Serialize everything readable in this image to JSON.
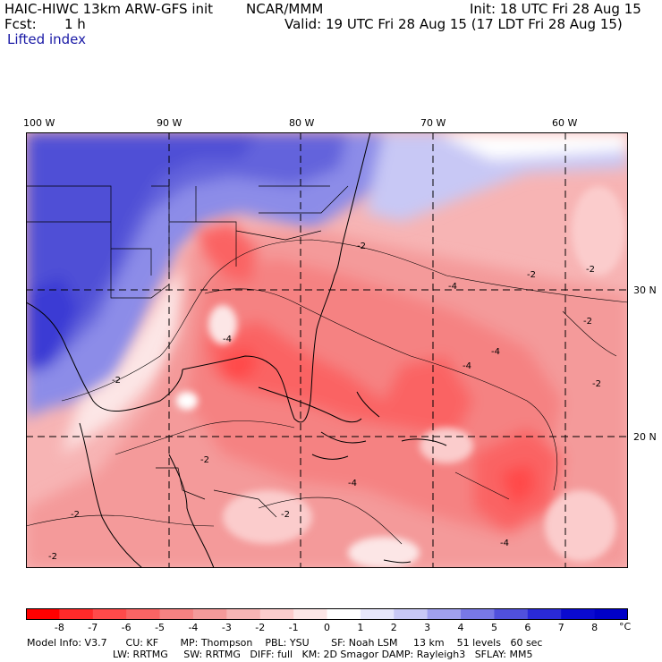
{
  "header": {
    "model": "HAIC-HIWC 13km ARW-GFS init",
    "org": "NCAR/MMM",
    "init": "Init: 18 UTC Fri 28 Aug 15",
    "fcst_label": "Fcst:",
    "fcst_value": "1 h",
    "valid": "Valid: 19 UTC Fri 28 Aug 15 (17 LDT Fri 28 Aug 15)",
    "field": "Lifted index"
  },
  "map": {
    "lon_labels": [
      "100 W",
      "90 W",
      "80 W",
      "70 W",
      "60 W"
    ],
    "lat_labels": [
      "30 N",
      "20 N"
    ],
    "contour_labels": [
      "-2",
      "-4"
    ]
  },
  "colorbar": {
    "ticks": [
      "-8",
      "-7",
      "-6",
      "-5",
      "-4",
      "-3",
      "-2",
      "-1",
      "0",
      "1",
      "2",
      "3",
      "4",
      "5",
      "6",
      "7",
      "8"
    ],
    "unit": "°C",
    "colors": [
      "#ff0000",
      "#ff2a2a",
      "#ff4a4a",
      "#fa6464",
      "#f58282",
      "#f49a9a",
      "#f7b4b4",
      "#fbcccc",
      "#fce6e6",
      "#ffffff",
      "#e6e6fb",
      "#c8c8f5",
      "#a0a0ee",
      "#7878e6",
      "#5050dc",
      "#2a2ad8",
      "#0a0ad0",
      "#0000c8"
    ]
  },
  "info": {
    "line1": "Model Info: V3.7      CU: KF       MP: Thompson    PBL: YSU       SF: Noah LSM     13 km    51 levels   60 sec",
    "line2": "LW: RRTMG     SW: RRTMG   DIFF: full   KM: 2D Smagor DAMP: Rayleigh3   SFLAY: MM5"
  }
}
